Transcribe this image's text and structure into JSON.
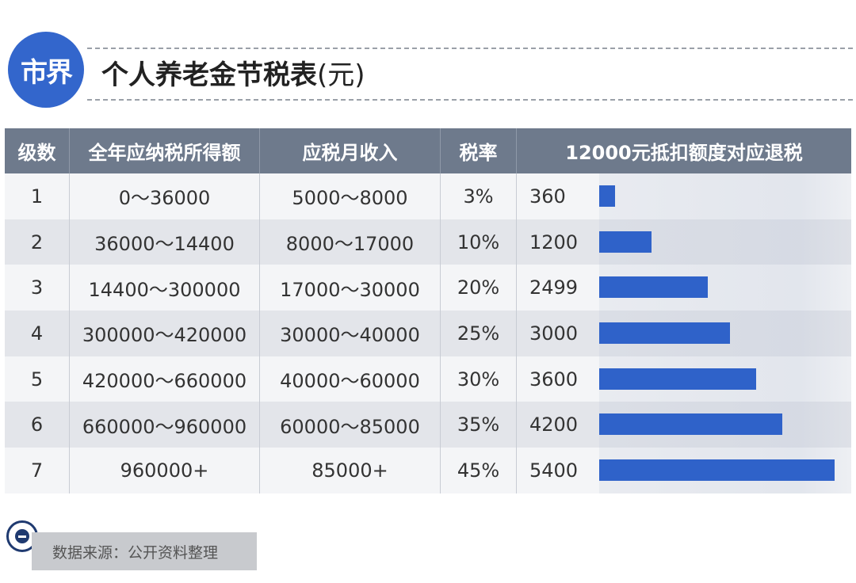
{
  "header": {
    "logo_text": "市界",
    "title": "个人养老金节税表",
    "title_unit": "(元)"
  },
  "table": {
    "headers": [
      "级数",
      "全年应纳税所得额",
      "应税月收入",
      "税率",
      "12000元抵扣额度对应退税"
    ],
    "rows": [
      {
        "level": "1",
        "annual": "0～36000",
        "monthly": "5000～8000",
        "rate": "3%",
        "refund": "360"
      },
      {
        "level": "2",
        "annual": "36000～14400",
        "monthly": "8000～17000",
        "rate": "10%",
        "refund": "1200"
      },
      {
        "level": "3",
        "annual": "14400～300000",
        "monthly": "17000～30000",
        "rate": "20%",
        "refund": "2499"
      },
      {
        "level": "4",
        "annual": "300000～420000",
        "monthly": "30000～40000",
        "rate": "25%",
        "refund": "3000"
      },
      {
        "level": "5",
        "annual": "420000～660000",
        "monthly": "40000～60000",
        "rate": "30%",
        "refund": "3600"
      },
      {
        "level": "6",
        "annual": "660000～960000",
        "monthly": "60000～85000",
        "rate": "35%",
        "refund": "4200"
      },
      {
        "level": "7",
        "annual": "960000+",
        "monthly": "85000+",
        "rate": "45%",
        "refund": "5400"
      }
    ]
  },
  "chart_data": {
    "type": "bar",
    "orientation": "horizontal",
    "categories": [
      "1",
      "2",
      "3",
      "4",
      "5",
      "6",
      "7"
    ],
    "values": [
      360,
      1200,
      2499,
      3000,
      3600,
      4200,
      5400
    ],
    "title": "",
    "xlim": [
      0,
      5400
    ],
    "bar_color": "#2f62c9"
  },
  "footer": {
    "source": "数据来源：公开资料整理"
  },
  "colors": {
    "brand": "#3366cc",
    "header_bg": "#6e7a8c",
    "bar": "#2f62c9"
  }
}
